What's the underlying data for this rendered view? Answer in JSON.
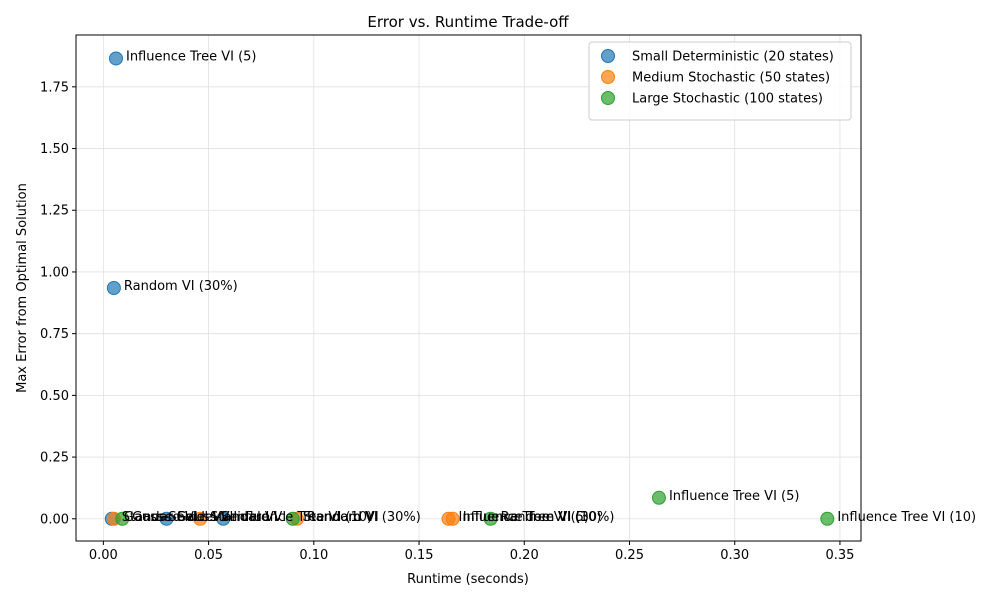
{
  "chart_data": {
    "type": "scatter",
    "title": "Error vs. Runtime Trade-off",
    "xlabel": "Runtime (seconds)",
    "ylabel": "Max Error from Optimal Solution",
    "xlim": [
      -0.013,
      0.36
    ],
    "ylim": [
      -0.09,
      1.96
    ],
    "xticks": [
      0.0,
      0.05,
      0.1,
      0.15,
      0.2,
      0.25,
      0.3,
      0.35
    ],
    "xtick_labels": [
      "0.00",
      "0.05",
      "0.10",
      "0.15",
      "0.20",
      "0.25",
      "0.30",
      "0.35"
    ],
    "yticks": [
      0.0,
      0.25,
      0.5,
      0.75,
      1.0,
      1.25,
      1.5,
      1.75
    ],
    "ytick_labels": [
      "0.00",
      "0.25",
      "0.50",
      "0.75",
      "1.00",
      "1.25",
      "1.50",
      "1.75"
    ],
    "grid": true,
    "legend_position": "top-right",
    "series": [
      {
        "name": "Small Deterministic (20 states)",
        "color": "#1f77b4",
        "points": [
          {
            "x": 0.004,
            "y": 0.0,
            "label": "Standard VI"
          },
          {
            "x": 0.005,
            "y": 0.935,
            "label": "Random VI (30%)"
          },
          {
            "x": 0.006,
            "y": 1.865,
            "label": "Influence Tree VI (5)"
          },
          {
            "x": 0.03,
            "y": 0.0,
            "label": "Gauss-Seidel VI"
          },
          {
            "x": 0.057,
            "y": 0.0,
            "label": "Influence Tree VI (10)"
          }
        ]
      },
      {
        "name": "Medium Stochastic (50 states)",
        "color": "#ff7f0e",
        "points": [
          {
            "x": 0.005,
            "y": 0.0,
            "label": "Gauss-Seidel VI"
          },
          {
            "x": 0.046,
            "y": 0.0,
            "label": "Standard VI"
          },
          {
            "x": 0.092,
            "y": 0.0,
            "label": "Random VI (30%)"
          },
          {
            "x": 0.164,
            "y": 0.0,
            "label": "Influence Tree VI (5)"
          },
          {
            "x": 0.166,
            "y": 0.0,
            "label": "Influence Tree VI (10)"
          }
        ]
      },
      {
        "name": "Large Stochastic (100 states)",
        "color": "#2ca02c",
        "points": [
          {
            "x": 0.009,
            "y": 0.0,
            "label": "Gauss-Seidel VI"
          },
          {
            "x": 0.09,
            "y": 0.0,
            "label": "Standard VI"
          },
          {
            "x": 0.184,
            "y": 0.0,
            "label": "Random VI (30%)"
          },
          {
            "x": 0.264,
            "y": 0.085,
            "label": "Influence Tree VI (5)"
          },
          {
            "x": 0.344,
            "y": 0.0,
            "label": "Influence Tree VI (10)"
          }
        ]
      }
    ]
  }
}
